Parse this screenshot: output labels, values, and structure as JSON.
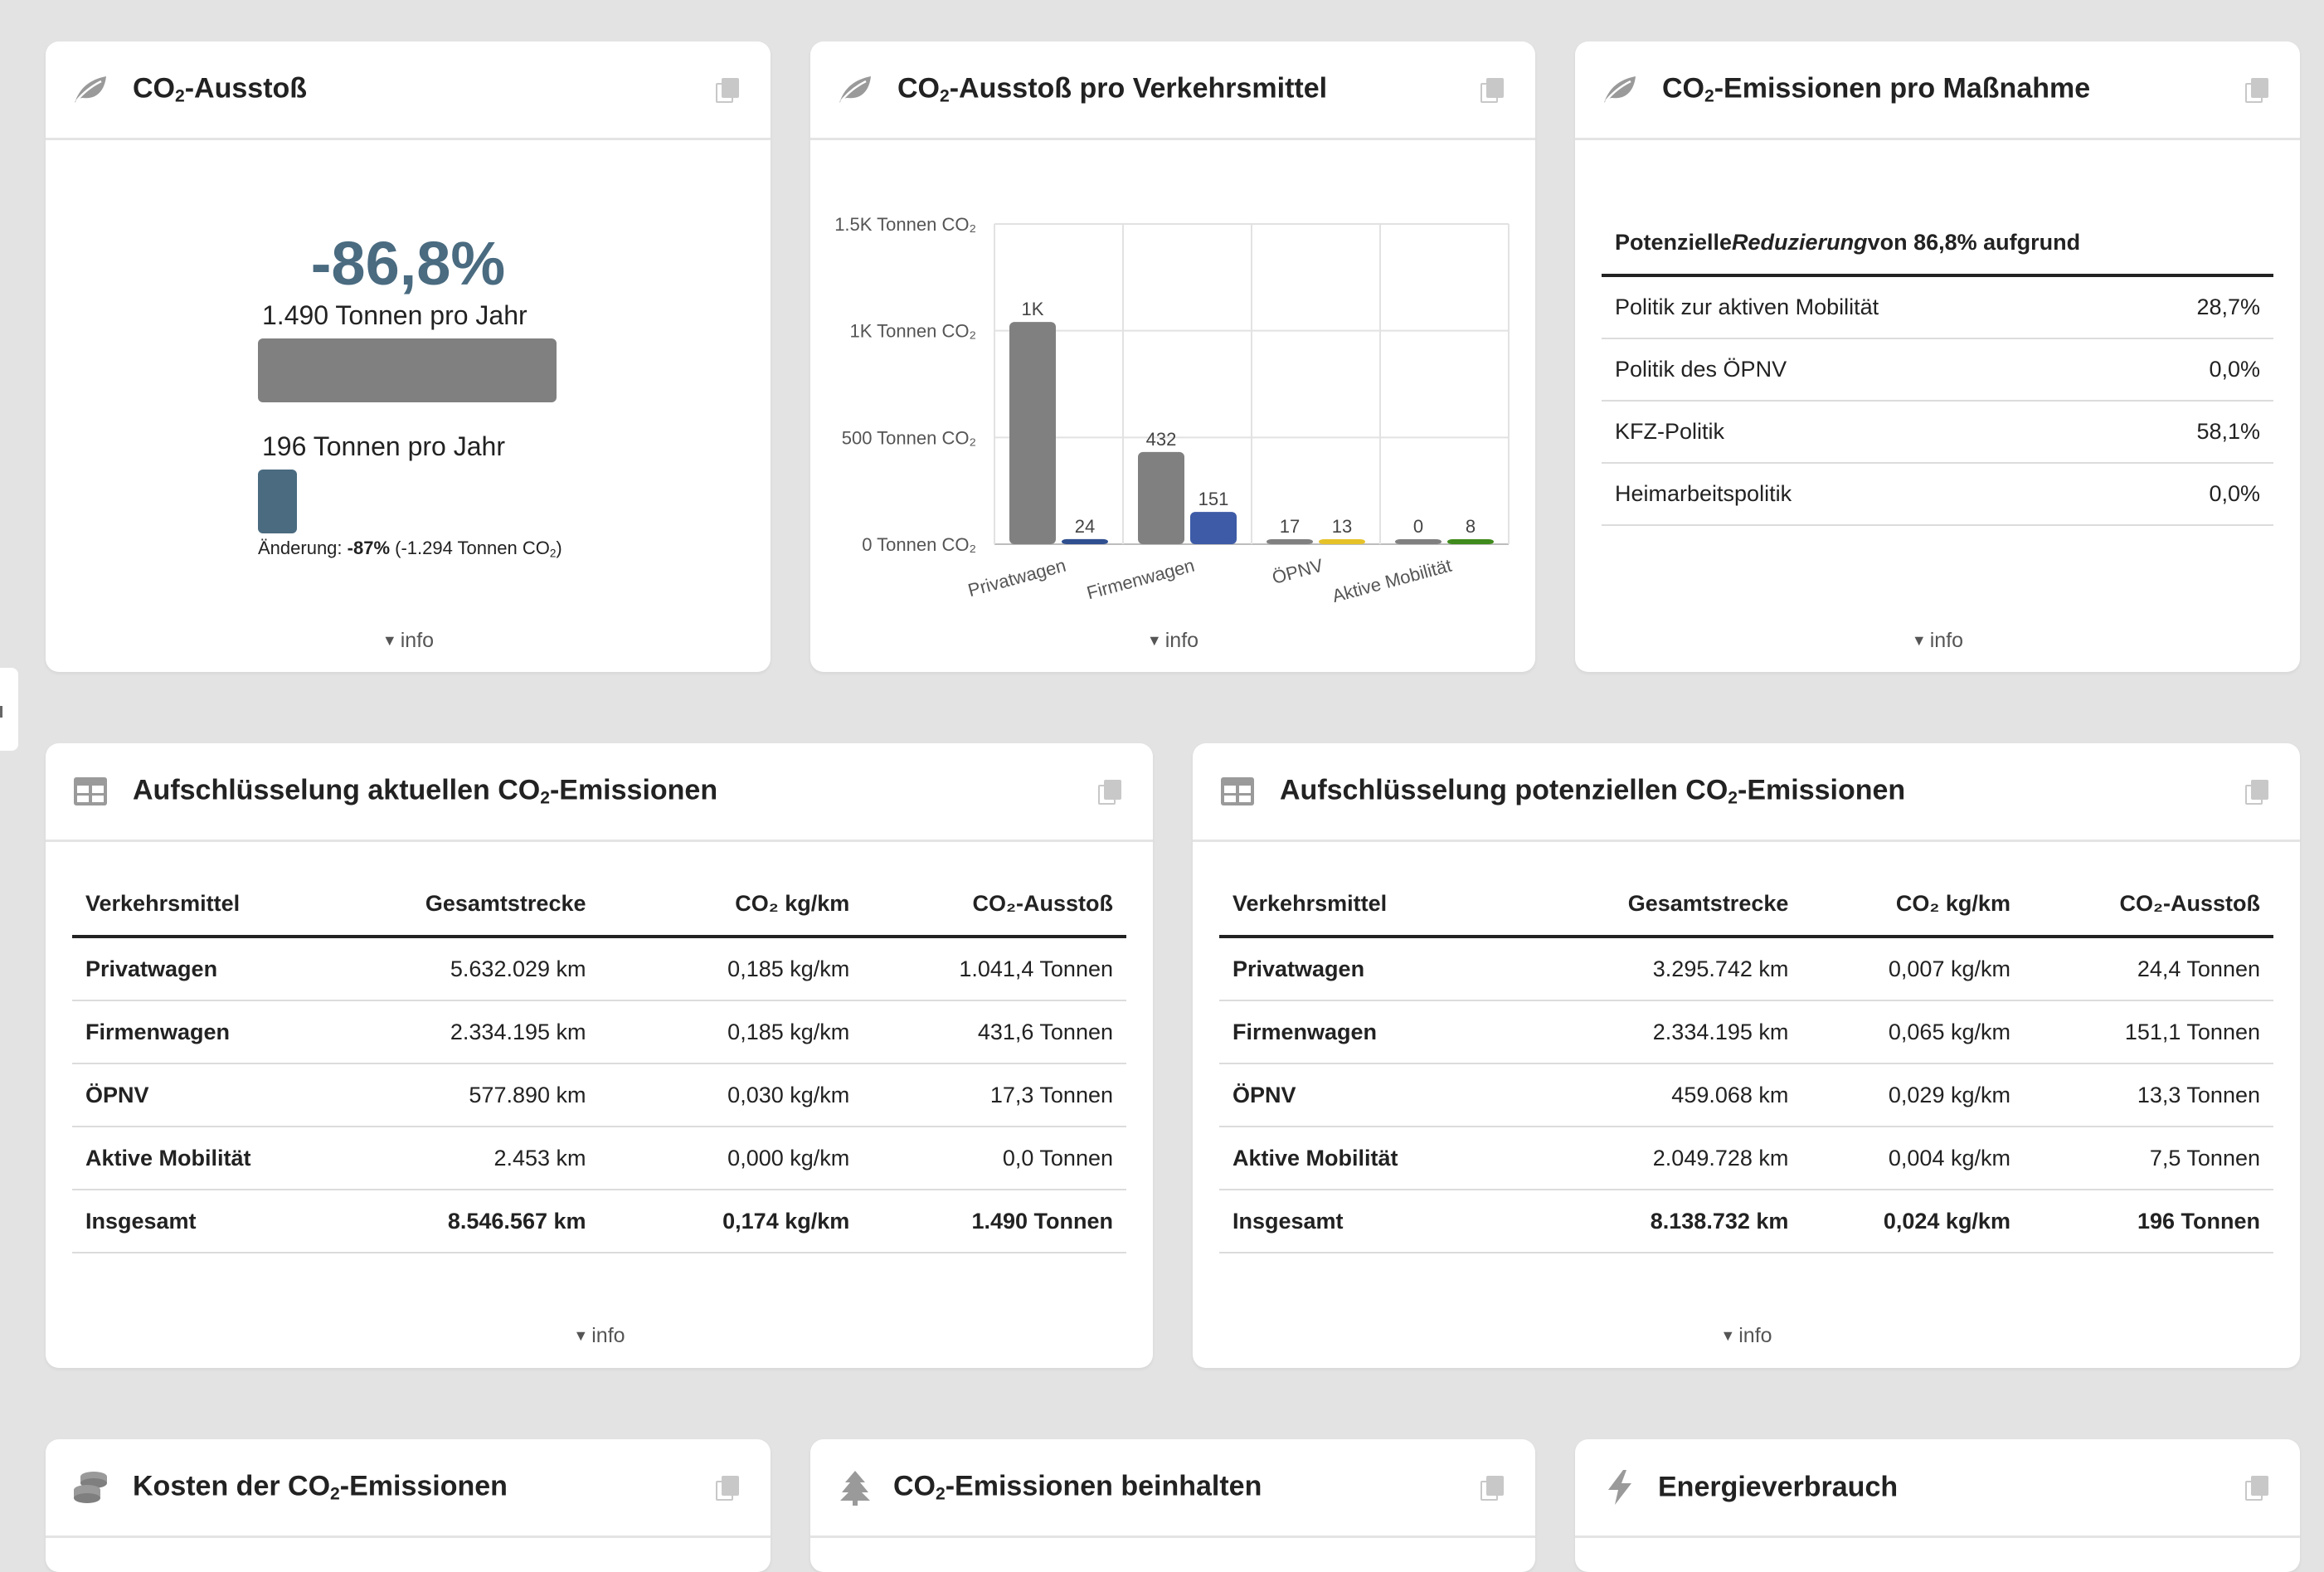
{
  "cards": {
    "co2_total": {
      "title_pre": "CO",
      "title_sub": "2",
      "title_post": "-Ausstoß",
      "percent": "-86,8%",
      "current_label": "1.490 Tonnen pro Jahr",
      "potential_label": "196 Tonnen pro Jahr",
      "current_value": 1490,
      "potential_value": 196,
      "change_prefix": "Änderung: ",
      "change_pct": "-87%",
      "change_detail_pre": " (-1.294 Tonnen CO",
      "change_detail_sub": "2",
      "change_detail_post": ")",
      "info": "info"
    },
    "co2_by_mode": {
      "title_pre": "CO",
      "title_sub": "2",
      "title_post": "-Ausstoß pro Verkehrsmittel",
      "info": "info"
    },
    "co2_by_measure": {
      "title_pre": "CO",
      "title_sub": "2",
      "title_post": "-Emissionen pro Maßnahme",
      "header_pre": "Potenzielle ",
      "header_em": "Reduzierung",
      "header_post": " von 86,8% aufgrund",
      "rows": [
        {
          "label": "Politik zur aktiven Mobilität",
          "value": "28,7%"
        },
        {
          "label": "Politik des ÖPNV",
          "value": "0,0%"
        },
        {
          "label": "KFZ-Politik",
          "value": "58,1%"
        },
        {
          "label": "Heimarbeitspolitik",
          "value": "0,0%"
        }
      ],
      "info": "info"
    },
    "current_breakdown": {
      "title_pre": "Aufschlüsselung aktuellen CO",
      "title_sub": "2",
      "title_post": "-Emissionen",
      "columns": [
        "Verkehrsmittel",
        "Gesamtstrecke",
        "CO₂ kg/km",
        "CO₂-Ausstoß"
      ],
      "rows": [
        [
          "Privatwagen",
          "5.632.029 km",
          "0,185 kg/km",
          "1.041,4 Tonnen"
        ],
        [
          "Firmenwagen",
          "2.334.195 km",
          "0,185 kg/km",
          "431,6 Tonnen"
        ],
        [
          "ÖPNV",
          "577.890 km",
          "0,030 kg/km",
          "17,3 Tonnen"
        ],
        [
          "Aktive Mobilität",
          "2.453 km",
          "0,000 kg/km",
          "0,0 Tonnen"
        ]
      ],
      "total": [
        "Insgesamt",
        "8.546.567 km",
        "0,174 kg/km",
        "1.490 Tonnen"
      ],
      "info": "info"
    },
    "potential_breakdown": {
      "title_pre": "Aufschlüsselung potenziellen CO",
      "title_sub": "2",
      "title_post": "-Emissionen",
      "columns": [
        "Verkehrsmittel",
        "Gesamtstrecke",
        "CO₂ kg/km",
        "CO₂-Ausstoß"
      ],
      "rows": [
        [
          "Privatwagen",
          "3.295.742 km",
          "0,007 kg/km",
          "24,4 Tonnen"
        ],
        [
          "Firmenwagen",
          "2.334.195 km",
          "0,065 kg/km",
          "151,1 Tonnen"
        ],
        [
          "ÖPNV",
          "459.068 km",
          "0,029 kg/km",
          "13,3 Tonnen"
        ],
        [
          "Aktive Mobilität",
          "2.049.728 km",
          "0,004 kg/km",
          "7,5 Tonnen"
        ]
      ],
      "total": [
        "Insgesamt",
        "8.138.732 km",
        "0,024 kg/km",
        "196 Tonnen"
      ],
      "info": "info"
    },
    "cost": {
      "title_pre": "Kosten der CO",
      "title_sub": "2",
      "title_post": "-Emissionen"
    },
    "offset": {
      "title_pre": "CO",
      "title_sub": "2",
      "title_post": "-Emissionen beinhalten"
    },
    "energy": {
      "title": "Energieverbrauch"
    }
  },
  "colors": {
    "accent": "#4a6b80",
    "current": "#808080",
    "privatwagen": "#2f4f8f",
    "firmenwagen": "#3d5ba6",
    "oepnv": "#e6c229",
    "aktive": "#3f8a1c",
    "icon": "#9a9a9a"
  },
  "chart_data": {
    "type": "bar",
    "categories": [
      "Privatwagen",
      "Firmenwagen",
      "ÖPNV",
      "Aktive Mobilität"
    ],
    "series": [
      {
        "values": [
          1041,
          432,
          17,
          0
        ]
      },
      {
        "values": [
          24,
          151,
          13,
          8
        ]
      }
    ],
    "data_labels": [
      [
        "1K",
        "432",
        "17",
        "0"
      ],
      [
        "24",
        "151",
        "13",
        "8"
      ]
    ],
    "ytick_values": [
      0,
      500,
      1000,
      1500
    ],
    "ytick_labels": [
      "0 Tonnen CO₂",
      "500 Tonnen CO₂",
      "1K Tonnen CO₂",
      "1.5K Tonnen CO₂"
    ],
    "ylim": [
      0,
      1500
    ],
    "grid": true
  }
}
